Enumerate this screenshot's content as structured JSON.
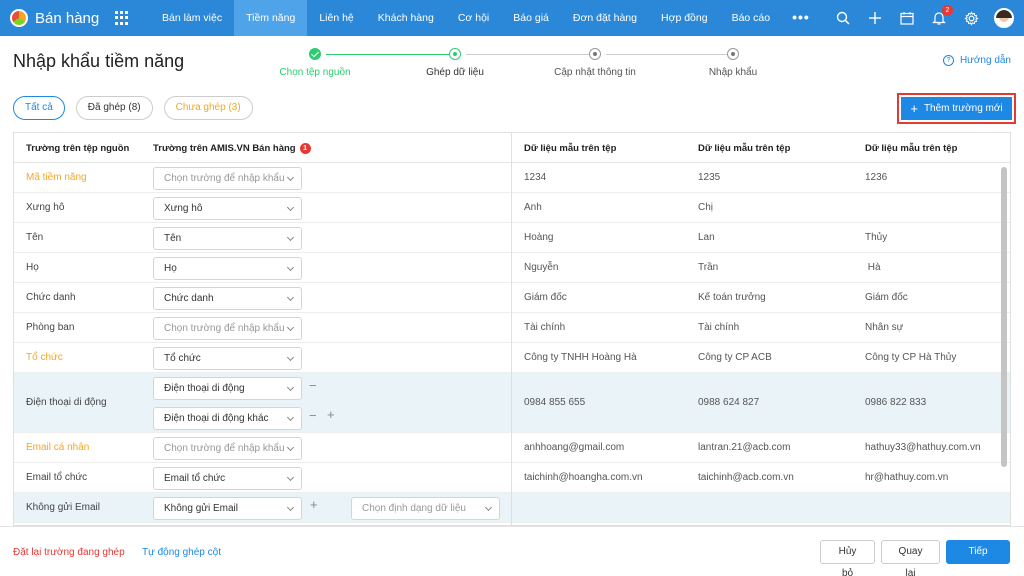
{
  "app": {
    "name": "Bán hàng"
  },
  "nav": {
    "items": [
      "Bán làm việc",
      "Tiềm năng",
      "Liên hệ",
      "Khách hàng",
      "Cơ hội",
      "Báo giá",
      "Đơn đặt hàng",
      "Hợp đồng",
      "Báo cáo"
    ],
    "active_index": 1,
    "more": "•••",
    "notification_count": "2"
  },
  "page": {
    "title": "Nhập khẩu tiềm năng",
    "help": "Hướng dẫn"
  },
  "steps": [
    {
      "label": "Chọn tệp nguồn",
      "state": "done"
    },
    {
      "label": "Ghép dữ liệu",
      "state": "current"
    },
    {
      "label": "Cập nhật thông tin",
      "state": "pending"
    },
    {
      "label": "Nhập khẩu",
      "state": "pending"
    }
  ],
  "filters": {
    "all": "Tất cả",
    "mapped": "Đã ghép (8)",
    "unmapped": "Chưa ghép (3)"
  },
  "add_field": "Thêm trường mới",
  "table": {
    "headers": {
      "source": "Trường trên tệp nguồn",
      "target": "Trường trên AMIS.VN Bán hàng",
      "target_badge": "1",
      "sample1": "Dữ liệu mẫu trên tệp",
      "sample2": "Dữ liệu mẫu trên tệp",
      "sample3": "Dữ liệu mẫu trên tệp"
    },
    "rows": [
      {
        "source": "Mã tiềm năng",
        "warn": true,
        "selects": [
          {
            "value": "Chọn trường để nhập khẩu",
            "ph": true
          }
        ],
        "samples": [
          "1234",
          "1235",
          "1236"
        ]
      },
      {
        "source": "Xưng hô",
        "warn": false,
        "selects": [
          {
            "value": "Xưng hô",
            "ph": false
          }
        ],
        "samples": [
          "Anh",
          "Chị",
          ""
        ]
      },
      {
        "source": "Tên",
        "warn": false,
        "selects": [
          {
            "value": "Tên",
            "ph": false
          }
        ],
        "samples": [
          "Hoàng",
          "Lan",
          "Thủy"
        ]
      },
      {
        "source": "Họ",
        "warn": false,
        "selects": [
          {
            "value": "Họ",
            "ph": false
          }
        ],
        "samples": [
          "Nguyễn",
          "Trần",
          " Hà"
        ]
      },
      {
        "source": "Chức danh",
        "warn": false,
        "selects": [
          {
            "value": "Chức danh",
            "ph": false
          }
        ],
        "samples": [
          "Giám đốc",
          "Kế toán trưởng",
          "Giám đốc"
        ]
      },
      {
        "source": "Phòng ban",
        "warn": false,
        "selects": [
          {
            "value": "Chọn trường để nhập khẩu",
            "ph": true
          }
        ],
        "samples": [
          "Tài chính",
          "Tài chính",
          "Nhân sự"
        ]
      },
      {
        "source": "Tổ chức",
        "warn": true,
        "selects": [
          {
            "value": "Tổ chức",
            "ph": false
          }
        ],
        "samples": [
          "Công ty TNHH Hoàng Hà",
          "Công ty CP ACB",
          "Công ty CP Hà Thủy"
        ]
      },
      {
        "source": "Điện thoại di động",
        "warn": false,
        "selects": [
          {
            "value": "Điện thoại di động",
            "ph": false
          },
          {
            "value": "Điện thoại di động khác",
            "ph": false
          }
        ],
        "samples": [
          "0984 855 655",
          "0988 624 827",
          "0986 822 833"
        ]
      },
      {
        "source": "Email cá nhân",
        "warn": true,
        "selects": [
          {
            "value": "Chọn trường để nhập khẩu",
            "ph": true
          }
        ],
        "samples": [
          "anhhoang@gmail.com",
          "lantran.21@acb.com",
          "hathuy33@hathuy.com.vn"
        ]
      },
      {
        "source": "Email tổ chức",
        "warn": false,
        "selects": [
          {
            "value": "Email tổ chức",
            "ph": false
          }
        ],
        "samples": [
          "taichinh@hoangha.com.vn",
          "taichinh@acb.com.vn",
          "hr@hathuy.com.vn"
        ]
      },
      {
        "source": "Không gửi Email",
        "warn": false,
        "selects": [
          {
            "value": "Không gửi Email",
            "ph": false
          }
        ],
        "format": "Chọn định dạng dữ liệu",
        "samples": [
          "",
          "",
          ""
        ]
      }
    ]
  },
  "footer": {
    "reset": "Đặt lại trường đang ghép",
    "auto": "Tự động ghép cột",
    "cancel": "Hủy bỏ",
    "back": "Quay lại",
    "next": "Tiếp theo"
  },
  "colors": {
    "primary": "#2b88d8",
    "accent": "#1e88e5",
    "warning": "#f5a623",
    "danger": "#e53935",
    "success": "#2ecc71"
  }
}
